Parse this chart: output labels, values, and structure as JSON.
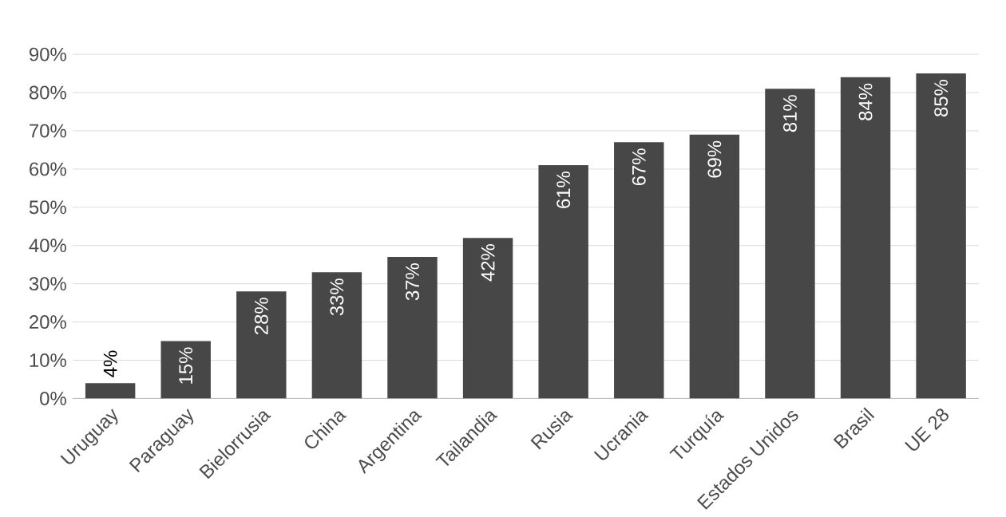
{
  "chart_data": {
    "type": "bar",
    "categories": [
      "Uruguay",
      "Paraguay",
      "Bielorrusia",
      "China",
      "Argentina",
      "Tailandia",
      "Rusia",
      "Ucrania",
      "Turquía",
      "Estados Unidos",
      "Brasil",
      "UE 28"
    ],
    "values": [
      4,
      15,
      28,
      33,
      37,
      42,
      61,
      67,
      69,
      81,
      84,
      85
    ],
    "value_labels": [
      "4%",
      "15%",
      "28%",
      "33%",
      "37%",
      "42%",
      "61%",
      "67%",
      "69%",
      "81%",
      "84%",
      "85%"
    ],
    "color": "#474748",
    "ylim": [
      0,
      90
    ],
    "yticks": [
      {
        "value": 0,
        "label": "0%"
      },
      {
        "value": 10,
        "label": "10%"
      },
      {
        "value": 20,
        "label": "20%"
      },
      {
        "value": 30,
        "label": "30%"
      },
      {
        "value": 40,
        "label": "40%"
      },
      {
        "value": 50,
        "label": "50%"
      },
      {
        "value": 60,
        "label": "60%"
      },
      {
        "value": 70,
        "label": "70%"
      },
      {
        "value": 80,
        "label": "80%"
      },
      {
        "value": 90,
        "label": "90%"
      }
    ],
    "grid": "y"
  }
}
